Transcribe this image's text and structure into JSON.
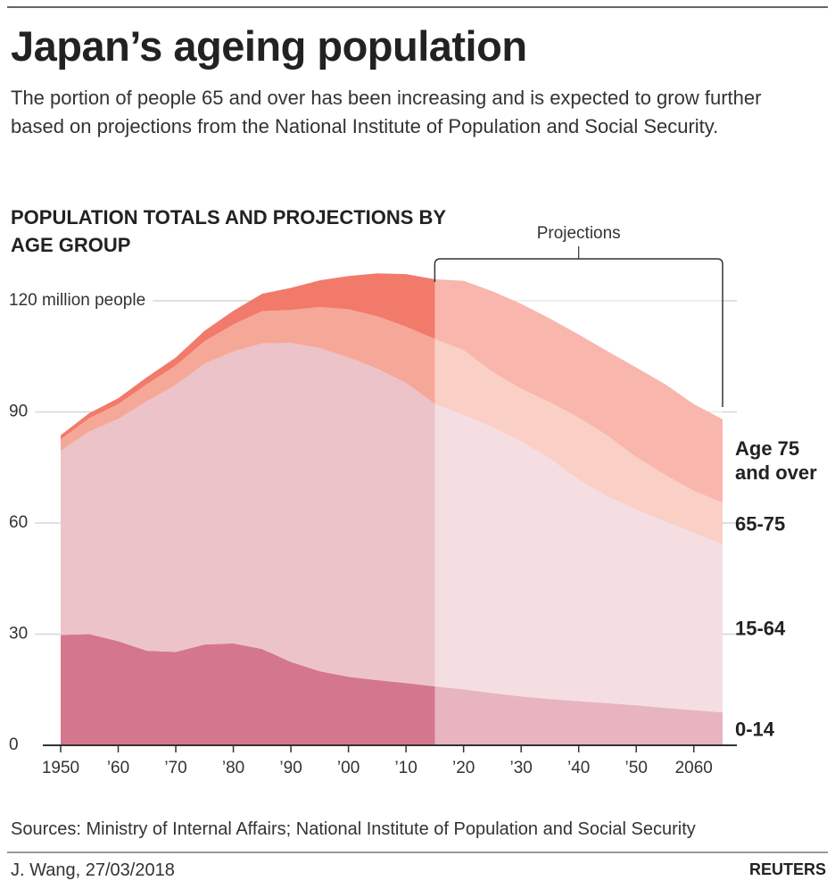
{
  "title": "Japan’s ageing population",
  "subtitle": "The portion of people 65 and over has been increasing and is expected to grow further based on projections from the National Institute of Population and Social Security.",
  "chart_data": {
    "type": "stacked-area",
    "title": "POPULATION TOTALS AND PROJECTIONS BY AGE GROUP",
    "annotation": "Projections",
    "projection_start": 2015,
    "x": [
      1950,
      1955,
      1960,
      1965,
      1970,
      1975,
      1980,
      1985,
      1990,
      1995,
      2000,
      2005,
      2010,
      2015,
      2020,
      2025,
      2030,
      2035,
      2040,
      2045,
      2050,
      2055,
      2060,
      2065
    ],
    "series": [
      {
        "name": "0-14",
        "color": "#d4778c",
        "values": [
          29.8,
          30.0,
          28.1,
          25.5,
          25.2,
          27.2,
          27.5,
          26.0,
          22.5,
          20.0,
          18.5,
          17.6,
          16.8,
          15.9,
          15.1,
          14.1,
          13.2,
          12.5,
          11.9,
          11.4,
          10.8,
          10.1,
          9.5,
          8.9
        ]
      },
      {
        "name": "15-64",
        "color": "#ecc3c9",
        "values": [
          49.7,
          54.7,
          60.0,
          67.4,
          72.1,
          75.8,
          78.8,
          82.5,
          86.1,
          87.2,
          86.2,
          84.1,
          81.0,
          76.3,
          74.1,
          71.7,
          68.8,
          64.9,
          59.8,
          55.8,
          52.8,
          50.3,
          47.9,
          45.3
        ]
      },
      {
        "name": "65-75",
        "color": "#f6a898",
        "values": [
          3.1,
          3.6,
          4.0,
          4.6,
          5.2,
          6.1,
          7.3,
          8.7,
          8.9,
          11.1,
          13.0,
          14.1,
          15.2,
          17.5,
          17.5,
          15.0,
          14.3,
          15.2,
          16.8,
          16.4,
          14.2,
          12.6,
          11.3,
          11.3
        ]
      },
      {
        "name": "Age 75 and over",
        "color": "#f27a6b",
        "values": [
          1.1,
          1.4,
          1.6,
          1.9,
          2.2,
          2.8,
          3.7,
          4.7,
          6.0,
          7.2,
          9.0,
          11.6,
          14.2,
          16.1,
          18.7,
          21.8,
          22.9,
          22.6,
          22.4,
          22.8,
          24.2,
          24.5,
          23.4,
          22.5
        ]
      }
    ],
    "xlim": [
      1950,
      2065
    ],
    "xticks": [
      1950,
      {
        "value": 1960,
        "label": "’60"
      },
      {
        "value": 1970,
        "label": "’70"
      },
      {
        "value": 1980,
        "label": "’80"
      },
      {
        "value": 1990,
        "label": "’90"
      },
      {
        "value": 2000,
        "label": "’00"
      },
      {
        "value": 2010,
        "label": "’10"
      },
      {
        "value": 2020,
        "label": "’20"
      },
      {
        "value": 2030,
        "label": "’30"
      },
      {
        "value": 2040,
        "label": "’40"
      },
      {
        "value": 2050,
        "label": "’50"
      },
      2060
    ],
    "ylim": [
      0,
      130
    ],
    "yticks": [
      0,
      30,
      60,
      90,
      {
        "value": 120,
        "label": "120 million people"
      }
    ],
    "grid": true
  },
  "source": "Sources: Ministry of Internal Affairs; National Institute of Population and Social Security",
  "footer": {
    "credit": "J. Wang,  27/03/2018",
    "brand": "REUTERS"
  }
}
